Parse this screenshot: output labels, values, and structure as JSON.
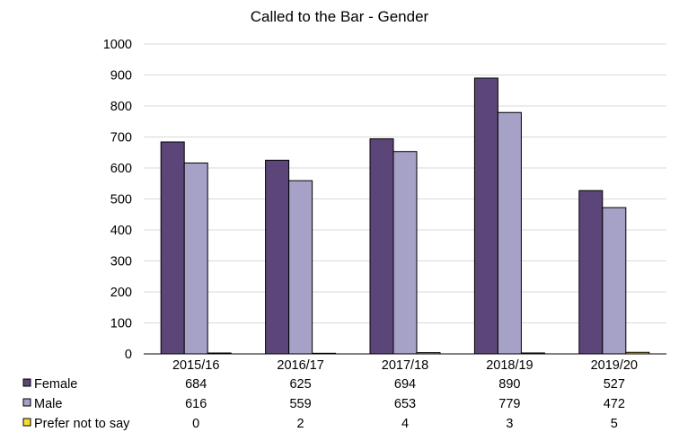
{
  "chart_data": {
    "type": "bar",
    "title": "Called to the Bar - Gender",
    "categories": [
      "2015/16",
      "2016/17",
      "2017/18",
      "2018/19",
      "2019/20"
    ],
    "ylim": [
      0,
      1000
    ],
    "yticks": [
      0,
      100,
      200,
      300,
      400,
      500,
      600,
      700,
      800,
      900,
      1000
    ],
    "grid": true,
    "legend": "data-table-left",
    "series": [
      {
        "name": "Female",
        "color": "#5b4579",
        "values": [
          684,
          625,
          694,
          890,
          527
        ]
      },
      {
        "name": "Male",
        "color": "#a6a1c6",
        "values": [
          616,
          559,
          653,
          779,
          472
        ]
      },
      {
        "name": "Prefer not to say",
        "color": "#f7dc2b",
        "values": [
          0,
          2,
          4,
          3,
          5
        ]
      }
    ]
  }
}
